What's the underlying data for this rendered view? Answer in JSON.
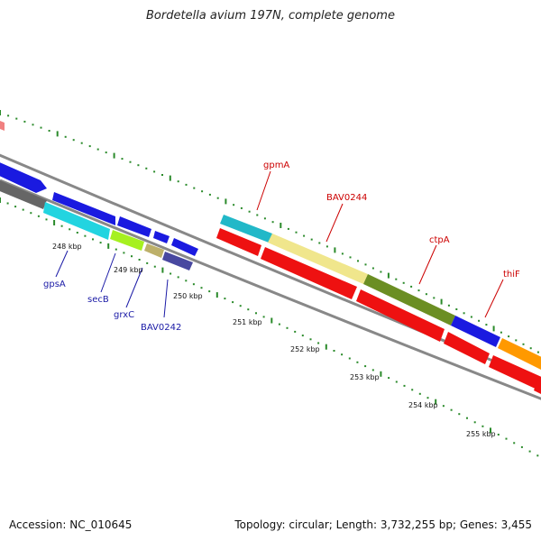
{
  "title": "Bordetella avium 197N, complete genome",
  "footer": {
    "accession": "Accession: NC_010645",
    "summary": "Topology: circular; Length: 3,732,255 bp; Genes: 3,455"
  },
  "colors": {
    "backbone": "#888888",
    "tick": "#2a8a2a",
    "label_red": "#cc0000",
    "label_blue": "#1a1aa6"
  },
  "tick_labels": [
    "248 kbp",
    "249 kbp",
    "250 kbp",
    "251 kbp",
    "252 kbp",
    "253 kbp",
    "254 kbp",
    "255 kbp"
  ],
  "gene_labels": {
    "gpsA": "gpsA",
    "secB": "secB",
    "grxC": "grxC",
    "BAV0242": "BAV0242",
    "gpmA": "gpmA",
    "BAV0244": "BAV0244",
    "ctpA": "ctpA",
    "thiF": "thiF"
  }
}
